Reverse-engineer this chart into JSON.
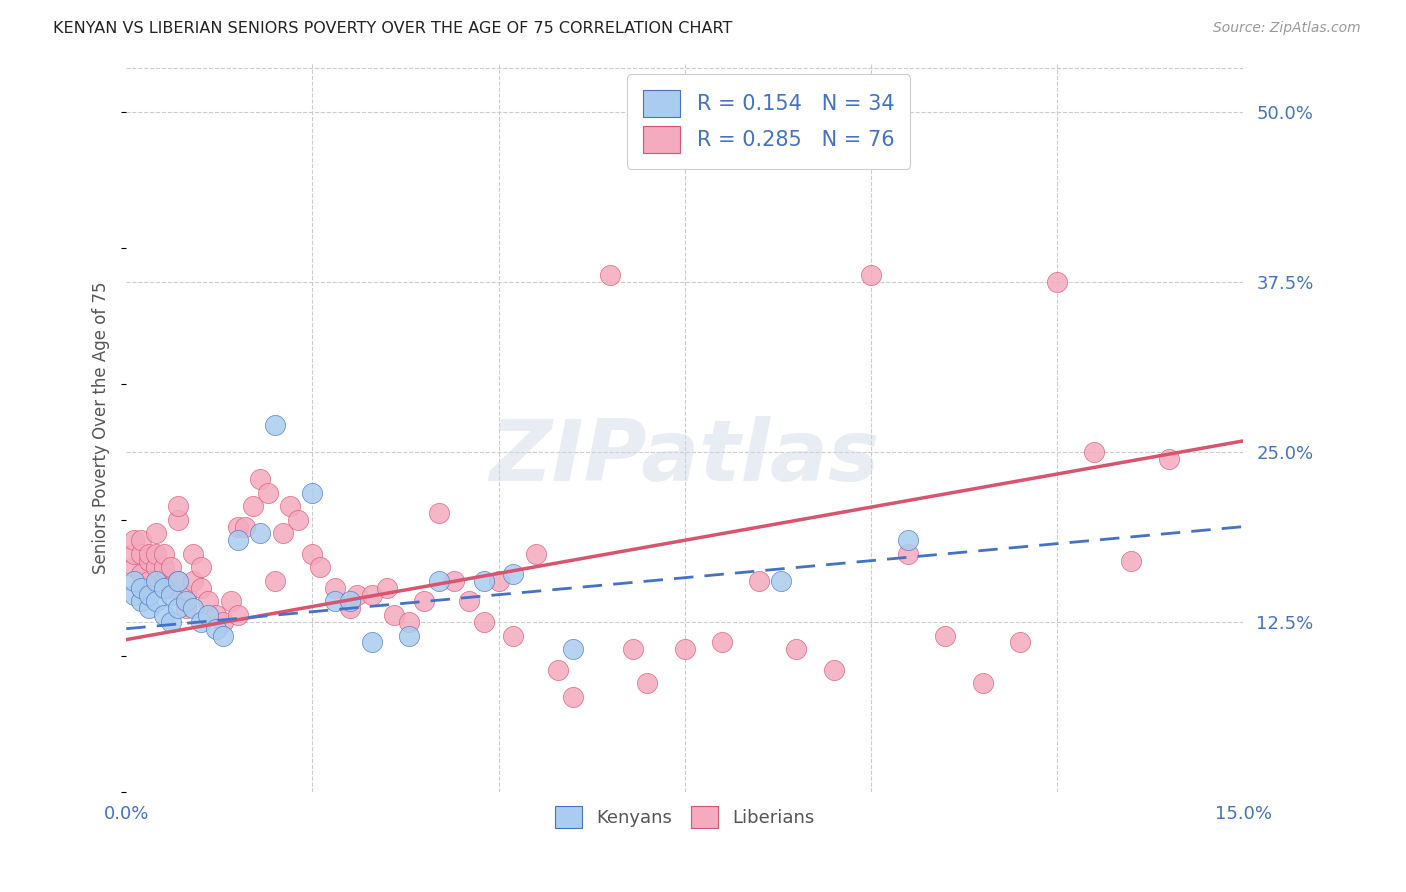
{
  "title": "KENYAN VS LIBERIAN SENIORS POVERTY OVER THE AGE OF 75 CORRELATION CHART",
  "source": "Source: ZipAtlas.com",
  "ylabel": "Seniors Poverty Over the Age of 75",
  "kenya_color": "#aaccee",
  "liberia_color": "#f4aabf",
  "kenya_line_color": "#4472c4",
  "liberia_line_color": "#d9546e",
  "watermark_text": "ZIPatlas",
  "xmin": 0.0,
  "xmax": 0.15,
  "ymin": 0.0,
  "ymax": 0.535,
  "ytick_values": [
    0.125,
    0.25,
    0.375,
    0.5
  ],
  "kenya_x": [
    0.001,
    0.001,
    0.002,
    0.002,
    0.003,
    0.003,
    0.004,
    0.004,
    0.005,
    0.005,
    0.006,
    0.006,
    0.007,
    0.007,
    0.008,
    0.009,
    0.01,
    0.011,
    0.012,
    0.013,
    0.015,
    0.018,
    0.02,
    0.025,
    0.028,
    0.03,
    0.033,
    0.038,
    0.042,
    0.048,
    0.052,
    0.06,
    0.088,
    0.105
  ],
  "kenya_y": [
    0.145,
    0.155,
    0.14,
    0.15,
    0.135,
    0.145,
    0.14,
    0.155,
    0.15,
    0.13,
    0.145,
    0.125,
    0.135,
    0.155,
    0.14,
    0.135,
    0.125,
    0.13,
    0.12,
    0.115,
    0.185,
    0.19,
    0.27,
    0.22,
    0.14,
    0.14,
    0.11,
    0.115,
    0.155,
    0.155,
    0.16,
    0.105,
    0.155,
    0.185
  ],
  "liberia_x": [
    0.001,
    0.001,
    0.001,
    0.002,
    0.002,
    0.002,
    0.003,
    0.003,
    0.003,
    0.004,
    0.004,
    0.004,
    0.005,
    0.005,
    0.005,
    0.006,
    0.006,
    0.007,
    0.007,
    0.007,
    0.008,
    0.008,
    0.009,
    0.009,
    0.01,
    0.01,
    0.011,
    0.012,
    0.013,
    0.014,
    0.015,
    0.015,
    0.016,
    0.017,
    0.018,
    0.019,
    0.02,
    0.021,
    0.022,
    0.023,
    0.025,
    0.026,
    0.028,
    0.03,
    0.031,
    0.033,
    0.035,
    0.036,
    0.038,
    0.04,
    0.042,
    0.044,
    0.046,
    0.048,
    0.05,
    0.052,
    0.055,
    0.058,
    0.06,
    0.065,
    0.068,
    0.07,
    0.075,
    0.08,
    0.085,
    0.09,
    0.095,
    0.1,
    0.105,
    0.11,
    0.115,
    0.12,
    0.125,
    0.13,
    0.135,
    0.14
  ],
  "liberia_y": [
    0.165,
    0.175,
    0.185,
    0.16,
    0.175,
    0.185,
    0.17,
    0.155,
    0.175,
    0.165,
    0.175,
    0.19,
    0.155,
    0.165,
    0.175,
    0.15,
    0.165,
    0.155,
    0.2,
    0.21,
    0.135,
    0.145,
    0.155,
    0.175,
    0.15,
    0.165,
    0.14,
    0.13,
    0.125,
    0.14,
    0.13,
    0.195,
    0.195,
    0.21,
    0.23,
    0.22,
    0.155,
    0.19,
    0.21,
    0.2,
    0.175,
    0.165,
    0.15,
    0.135,
    0.145,
    0.145,
    0.15,
    0.13,
    0.125,
    0.14,
    0.205,
    0.155,
    0.14,
    0.125,
    0.155,
    0.115,
    0.175,
    0.09,
    0.07,
    0.38,
    0.105,
    0.08,
    0.105,
    0.11,
    0.155,
    0.105,
    0.09,
    0.38,
    0.175,
    0.115,
    0.08,
    0.11,
    0.375,
    0.25,
    0.17,
    0.245
  ]
}
